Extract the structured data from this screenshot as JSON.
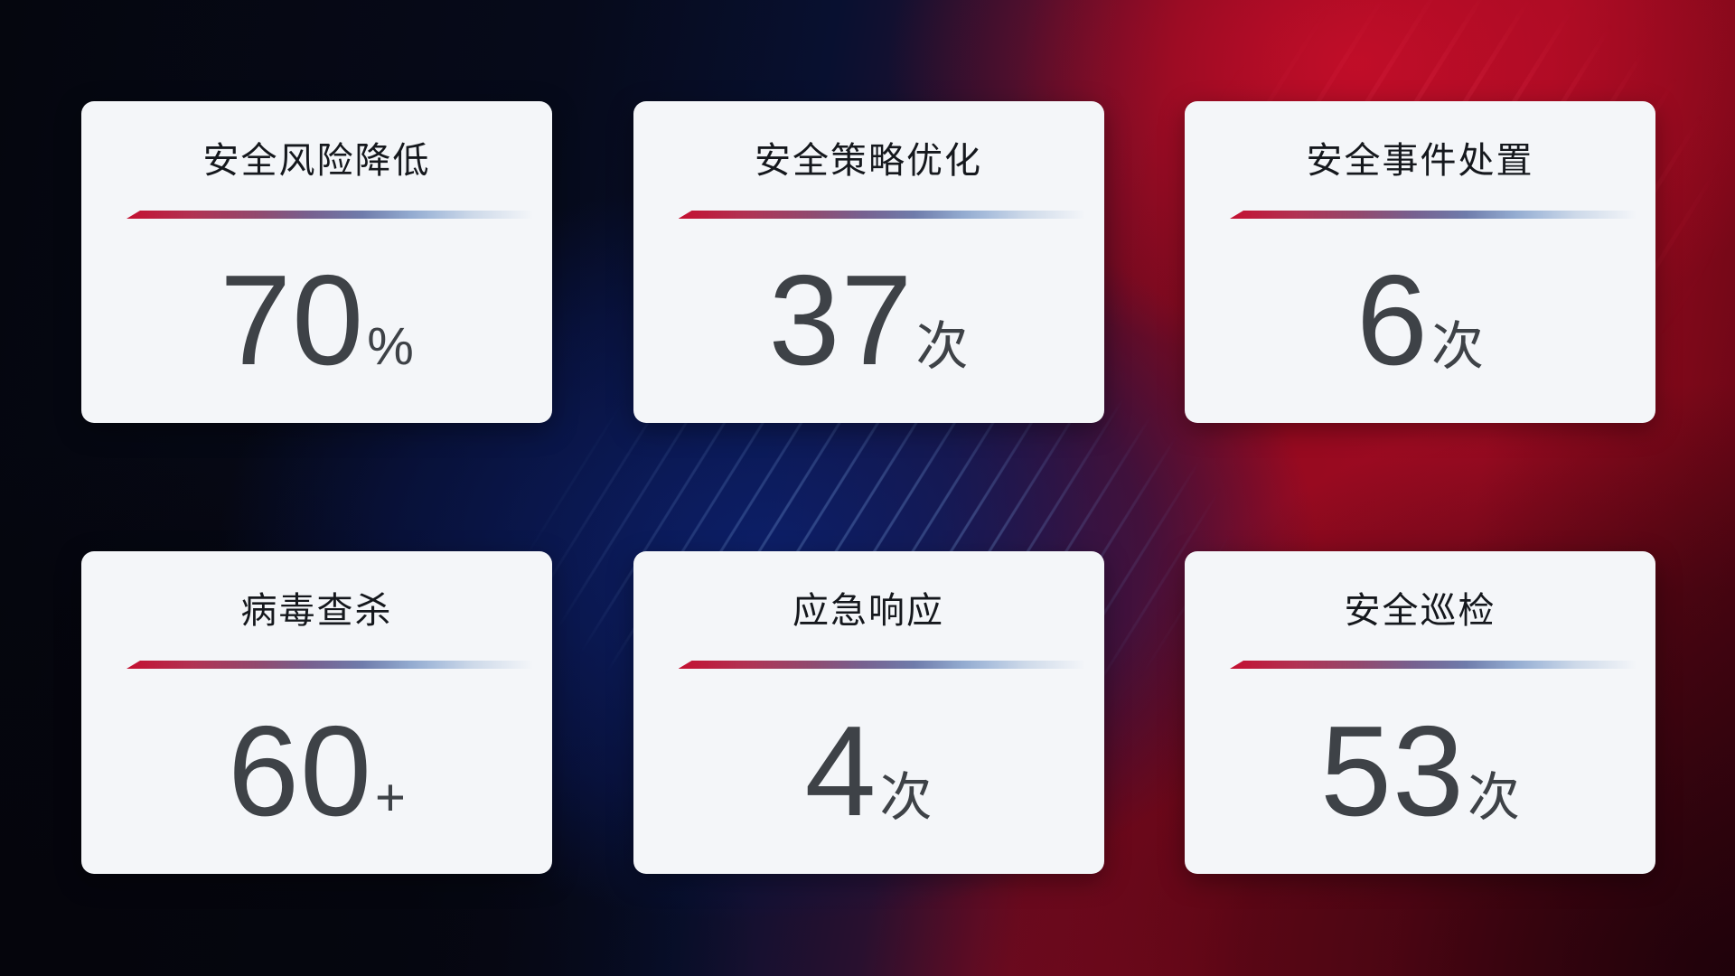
{
  "cards": [
    {
      "title": "安全风险降低",
      "value": "70",
      "unit": "%"
    },
    {
      "title": "安全策略优化",
      "value": "37",
      "unit": "次"
    },
    {
      "title": "安全事件处置",
      "value": "6",
      "unit": "次"
    },
    {
      "title": "病毒查杀",
      "value": "60",
      "unit": "+"
    },
    {
      "title": "应急响应",
      "value": "4",
      "unit": "次"
    },
    {
      "title": "安全巡检",
      "value": "53",
      "unit": "次"
    }
  ],
  "colors": {
    "card_bg": "#f4f6f9",
    "title_color": "#15181d",
    "value_color": "#3e4247",
    "divider_red": "#c41031",
    "divider_blue": "#a9bedc",
    "bg_dark_navy": "#081030",
    "bg_blue_glow": "#0d2066",
    "bg_red": "#9c0a20"
  }
}
